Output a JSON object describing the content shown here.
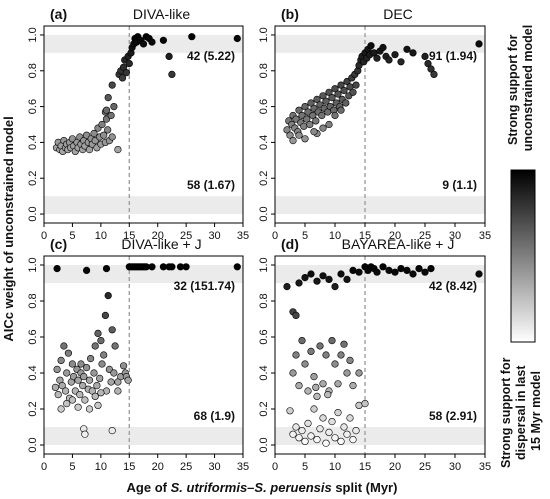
{
  "ylabel": "AICc weight of unconstrained model",
  "xlabel_prefix": "Age of ",
  "xlabel_italic": "S. utriformis–S. peruensis",
  "xlabel_suffix": " split (Myr)",
  "colorbar": {
    "top_label_lines": [
      "Strong support for",
      "unconstrained model"
    ],
    "bottom_label_lines": [
      "Strong support for",
      "dispersal in last",
      "15 Myr model"
    ],
    "color_top": "#000000",
    "color_bottom": "#ffffff"
  },
  "colors": {
    "band": "#ebebeb",
    "vline": "#999999",
    "point_stroke": "#000000"
  },
  "chart_data": [
    {
      "type": "scatter",
      "label": "(a)",
      "title": "DIVA-like",
      "xlim": [
        0,
        35
      ],
      "ylim": [
        -0.05,
        1.05
      ],
      "xticks": [
        0,
        5,
        10,
        15,
        20,
        25,
        30,
        35
      ],
      "yticks": [
        "0.0",
        "0.2",
        "0.4",
        "0.6",
        "0.8",
        "1.0"
      ],
      "vline_x": 15,
      "bands": [
        [
          0.9,
          1.0
        ],
        [
          0.0,
          0.1
        ]
      ],
      "annotation_top": "42 (5.22)",
      "annotation_bottom": "58 (1.67)",
      "points": [
        [
          2.2,
          0.37
        ],
        [
          2.5,
          0.4
        ],
        [
          2.8,
          0.36
        ],
        [
          3.0,
          0.38
        ],
        [
          3.3,
          0.35
        ],
        [
          3.5,
          0.41
        ],
        [
          3.8,
          0.37
        ],
        [
          4.0,
          0.39
        ],
        [
          4.2,
          0.36
        ],
        [
          4.5,
          0.4
        ],
        [
          4.7,
          0.37
        ],
        [
          5.0,
          0.42
        ],
        [
          5.2,
          0.38
        ],
        [
          5.5,
          0.35
        ],
        [
          5.8,
          0.4
        ],
        [
          6.0,
          0.37
        ],
        [
          6.3,
          0.43
        ],
        [
          6.5,
          0.39
        ],
        [
          6.8,
          0.36
        ],
        [
          7.0,
          0.41
        ],
        [
          7.2,
          0.38
        ],
        [
          7.5,
          0.44
        ],
        [
          7.8,
          0.4
        ],
        [
          8.0,
          0.36
        ],
        [
          8.3,
          0.42
        ],
        [
          8.5,
          0.39
        ],
        [
          8.8,
          0.45
        ],
        [
          9.0,
          0.41
        ],
        [
          9.3,
          0.37
        ],
        [
          9.5,
          0.48
        ],
        [
          9.8,
          0.43
        ],
        [
          10.0,
          0.39
        ],
        [
          10.2,
          0.5
        ],
        [
          10.5,
          0.44
        ],
        [
          10.8,
          0.4
        ],
        [
          11.0,
          0.53
        ],
        [
          11.2,
          0.47
        ],
        [
          11.5,
          0.41
        ],
        [
          11.8,
          0.55
        ],
        [
          12.0,
          0.43
        ],
        [
          12.3,
          0.6
        ],
        [
          11.3,
          0.65
        ],
        [
          10.8,
          0.57
        ],
        [
          12.0,
          0.72
        ],
        [
          13.0,
          0.36
        ],
        [
          11.0,
          0.58
        ],
        [
          13.2,
          0.78
        ],
        [
          13.5,
          0.8
        ],
        [
          13.8,
          0.76
        ],
        [
          14.0,
          0.82
        ],
        [
          14.2,
          0.86
        ],
        [
          14.5,
          0.79
        ],
        [
          14.8,
          0.88
        ],
        [
          15.0,
          0.84
        ],
        [
          15.3,
          0.9
        ],
        [
          15.5,
          0.93
        ],
        [
          15.8,
          0.95
        ],
        [
          16.0,
          0.98
        ],
        [
          16.3,
          0.96
        ],
        [
          16.5,
          0.99
        ],
        [
          17.0,
          0.97
        ],
        [
          17.5,
          0.95
        ],
        [
          18.0,
          0.99
        ],
        [
          18.5,
          0.98
        ],
        [
          19.0,
          0.96
        ],
        [
          21.0,
          0.97
        ],
        [
          22.0,
          0.88
        ],
        [
          22.5,
          0.78
        ],
        [
          26.0,
          0.99
        ],
        [
          34.0,
          0.98
        ]
      ]
    },
    {
      "type": "scatter",
      "label": "(b)",
      "title": "DEC",
      "xlim": [
        0,
        35
      ],
      "ylim": [
        -0.05,
        1.05
      ],
      "xticks": [
        0,
        5,
        10,
        15,
        20,
        25,
        30,
        35
      ],
      "yticks": [
        "0.0",
        "0.2",
        "0.4",
        "0.6",
        "0.8",
        "1.0"
      ],
      "vline_x": 15,
      "bands": [
        [
          0.9,
          1.0
        ],
        [
          0.0,
          0.1
        ]
      ],
      "annotation_top": "91 (1.94)",
      "annotation_bottom": "9 (1.1)",
      "points": [
        [
          2.0,
          0.47
        ],
        [
          2.3,
          0.52
        ],
        [
          2.5,
          0.44
        ],
        [
          2.8,
          0.5
        ],
        [
          3.0,
          0.55
        ],
        [
          3.3,
          0.48
        ],
        [
          3.5,
          0.53
        ],
        [
          3.8,
          0.46
        ],
        [
          4.0,
          0.58
        ],
        [
          4.3,
          0.51
        ],
        [
          4.5,
          0.55
        ],
        [
          4.8,
          0.49
        ],
        [
          5.0,
          0.6
        ],
        [
          5.3,
          0.53
        ],
        [
          5.5,
          0.57
        ],
        [
          5.8,
          0.5
        ],
        [
          6.0,
          0.62
        ],
        [
          6.3,
          0.55
        ],
        [
          6.5,
          0.59
        ],
        [
          6.8,
          0.52
        ],
        [
          7.0,
          0.64
        ],
        [
          7.2,
          0.57
        ],
        [
          7.5,
          0.61
        ],
        [
          7.8,
          0.55
        ],
        [
          8.0,
          0.66
        ],
        [
          8.2,
          0.59
        ],
        [
          8.5,
          0.63
        ],
        [
          8.8,
          0.57
        ],
        [
          9.0,
          0.68
        ],
        [
          9.2,
          0.6
        ],
        [
          9.5,
          0.65
        ],
        [
          9.8,
          0.58
        ],
        [
          10.0,
          0.7
        ],
        [
          10.2,
          0.62
        ],
        [
          10.5,
          0.67
        ],
        [
          10.8,
          0.6
        ],
        [
          11.0,
          0.72
        ],
        [
          11.2,
          0.64
        ],
        [
          11.5,
          0.69
        ],
        [
          11.8,
          0.62
        ],
        [
          12.0,
          0.74
        ],
        [
          12.3,
          0.66
        ],
        [
          12.5,
          0.71
        ],
        [
          12.8,
          0.76
        ],
        [
          13.0,
          0.68
        ],
        [
          13.3,
          0.78
        ],
        [
          13.5,
          0.72
        ],
        [
          13.8,
          0.8
        ],
        [
          14.0,
          0.83
        ],
        [
          14.3,
          0.86
        ],
        [
          14.5,
          0.88
        ],
        [
          14.8,
          0.85
        ],
        [
          15.0,
          0.9
        ],
        [
          15.3,
          0.87
        ],
        [
          15.5,
          0.92
        ],
        [
          15.8,
          0.89
        ],
        [
          16.0,
          0.94
        ],
        [
          16.5,
          0.9
        ],
        [
          17.0,
          0.87
        ],
        [
          17.5,
          0.91
        ],
        [
          18.0,
          0.93
        ],
        [
          18.5,
          0.88
        ],
        [
          19.0,
          0.86
        ],
        [
          20.0,
          0.89
        ],
        [
          21.0,
          0.85
        ],
        [
          22.0,
          0.92
        ],
        [
          23.0,
          0.9
        ],
        [
          25.0,
          0.88
        ],
        [
          25.5,
          0.84
        ],
        [
          26.0,
          0.81
        ],
        [
          26.5,
          0.78
        ],
        [
          34.0,
          0.95
        ],
        [
          7.0,
          0.45
        ],
        [
          8.0,
          0.48
        ],
        [
          5.0,
          0.42
        ],
        [
          6.5,
          0.46
        ],
        [
          9.0,
          0.5
        ],
        [
          3.0,
          0.41
        ],
        [
          4.0,
          0.44
        ],
        [
          10.0,
          0.55
        ],
        [
          11.0,
          0.58
        ]
      ]
    },
    {
      "type": "scatter",
      "label": "(c)",
      "title": "DIVA-like + J",
      "xlim": [
        0,
        35
      ],
      "ylim": [
        -0.05,
        1.05
      ],
      "xticks": [
        0,
        5,
        10,
        15,
        20,
        25,
        30,
        35
      ],
      "yticks": [
        "0.0",
        "0.2",
        "0.4",
        "0.6",
        "0.8",
        "1.0"
      ],
      "vline_x": 15,
      "bands": [
        [
          0.9,
          1.0
        ],
        [
          0.0,
          0.1
        ]
      ],
      "annotation_top": "32 (151.74)",
      "annotation_bottom": "68 (1.9)",
      "points": [
        [
          2.3,
          0.98
        ],
        [
          7.5,
          0.97
        ],
        [
          11.0,
          0.98
        ],
        [
          15.0,
          0.99
        ],
        [
          15.3,
          0.99
        ],
        [
          15.6,
          0.99
        ],
        [
          15.9,
          0.99
        ],
        [
          16.2,
          0.99
        ],
        [
          16.5,
          0.99
        ],
        [
          16.8,
          0.99
        ],
        [
          17.1,
          0.99
        ],
        [
          17.4,
          0.99
        ],
        [
          17.7,
          0.99
        ],
        [
          18.0,
          0.99
        ],
        [
          19.0,
          0.99
        ],
        [
          21.0,
          0.99
        ],
        [
          22.0,
          0.99
        ],
        [
          22.5,
          0.99
        ],
        [
          24.0,
          0.99
        ],
        [
          25.0,
          0.99
        ],
        [
          34.0,
          0.99
        ],
        [
          2.0,
          0.32
        ],
        [
          2.3,
          0.42
        ],
        [
          2.5,
          0.28
        ],
        [
          2.8,
          0.36
        ],
        [
          3.0,
          0.47
        ],
        [
          3.2,
          0.33
        ],
        [
          3.5,
          0.55
        ],
        [
          3.8,
          0.3
        ],
        [
          4.0,
          0.4
        ],
        [
          4.3,
          0.51
        ],
        [
          4.5,
          0.26
        ],
        [
          4.8,
          0.35
        ],
        [
          5.0,
          0.45
        ],
        [
          5.2,
          0.38
        ],
        [
          5.5,
          0.3
        ],
        [
          5.8,
          0.42
        ],
        [
          6.0,
          0.36
        ],
        [
          6.3,
          0.28
        ],
        [
          6.5,
          0.4
        ],
        [
          6.8,
          0.33
        ],
        [
          7.0,
          0.38
        ],
        [
          7.2,
          0.25
        ],
        [
          7.5,
          0.43
        ],
        [
          7.8,
          0.31
        ],
        [
          8.0,
          0.36
        ],
        [
          8.2,
          0.48
        ],
        [
          8.5,
          0.3
        ],
        [
          8.8,
          0.4
        ],
        [
          9.0,
          0.55
        ],
        [
          9.3,
          0.33
        ],
        [
          9.5,
          0.62
        ],
        [
          9.8,
          0.37
        ],
        [
          10.0,
          0.58
        ],
        [
          10.2,
          0.45
        ],
        [
          10.5,
          0.5
        ],
        [
          10.8,
          0.72
        ],
        [
          11.0,
          0.3
        ],
        [
          11.3,
          0.83
        ],
        [
          11.5,
          0.42
        ],
        [
          11.8,
          0.35
        ],
        [
          12.0,
          0.64
        ],
        [
          12.3,
          0.4
        ],
        [
          12.5,
          0.55
        ],
        [
          13.0,
          0.35
        ],
        [
          13.5,
          0.38
        ],
        [
          14.0,
          0.44
        ],
        [
          14.3,
          0.4
        ],
        [
          14.5,
          0.38
        ],
        [
          14.8,
          0.36
        ],
        [
          3.0,
          0.2
        ],
        [
          4.0,
          0.23
        ],
        [
          5.0,
          0.25
        ],
        [
          6.0,
          0.21
        ],
        [
          7.0,
          0.09
        ],
        [
          7.2,
          0.06
        ],
        [
          8.0,
          0.2
        ],
        [
          9.0,
          0.27
        ],
        [
          10.0,
          0.29
        ],
        [
          12.0,
          0.08
        ],
        [
          13.0,
          0.3
        ],
        [
          6.5,
          0.45
        ],
        [
          9.5,
          0.22
        ]
      ]
    },
    {
      "type": "scatter",
      "label": "(d)",
      "title": "BAYAREA-like + J",
      "xlim": [
        0,
        35
      ],
      "ylim": [
        -0.05,
        1.05
      ],
      "xticks": [
        0,
        5,
        10,
        15,
        20,
        25,
        30,
        35
      ],
      "yticks": [
        "0.0",
        "0.2",
        "0.4",
        "0.6",
        "0.8",
        "1.0"
      ],
      "vline_x": 15,
      "bands": [
        [
          0.9,
          1.0
        ],
        [
          0.0,
          0.1
        ]
      ],
      "annotation_top": "42 (8.42)",
      "annotation_bottom": "58 (2.91)",
      "points": [
        [
          2.0,
          0.88
        ],
        [
          3.0,
          0.74
        ],
        [
          3.5,
          0.72
        ],
        [
          4.0,
          0.9
        ],
        [
          5.0,
          0.93
        ],
        [
          6.0,
          0.95
        ],
        [
          7.0,
          0.91
        ],
        [
          8.0,
          0.94
        ],
        [
          9.0,
          0.92
        ],
        [
          10.0,
          0.88
        ],
        [
          11.0,
          0.95
        ],
        [
          12.0,
          0.92
        ],
        [
          13.0,
          0.97
        ],
        [
          14.0,
          0.96
        ],
        [
          15.0,
          0.99
        ],
        [
          15.5,
          0.97
        ],
        [
          16.0,
          0.99
        ],
        [
          16.5,
          0.98
        ],
        [
          17.0,
          0.96
        ],
        [
          18.0,
          0.99
        ],
        [
          19.0,
          0.97
        ],
        [
          20.0,
          0.96
        ],
        [
          21.0,
          0.98
        ],
        [
          22.0,
          0.97
        ],
        [
          23.0,
          0.95
        ],
        [
          24.0,
          0.98
        ],
        [
          25.0,
          0.96
        ],
        [
          26.0,
          0.98
        ],
        [
          34.0,
          0.95
        ],
        [
          3.0,
          0.4
        ],
        [
          3.5,
          0.5
        ],
        [
          4.0,
          0.33
        ],
        [
          4.5,
          0.58
        ],
        [
          5.0,
          0.45
        ],
        [
          5.5,
          0.3
        ],
        [
          6.0,
          0.52
        ],
        [
          6.5,
          0.38
        ],
        [
          7.0,
          0.27
        ],
        [
          7.5,
          0.55
        ],
        [
          8.0,
          0.34
        ],
        [
          8.5,
          0.5
        ],
        [
          9.0,
          0.3
        ],
        [
          9.5,
          0.58
        ],
        [
          10.0,
          0.45
        ],
        [
          10.5,
          0.34
        ],
        [
          11.0,
          0.5
        ],
        [
          11.5,
          0.56
        ],
        [
          12.0,
          0.4
        ],
        [
          12.5,
          0.47
        ],
        [
          13.0,
          0.33
        ],
        [
          14.0,
          0.4
        ],
        [
          8.8,
          0.28
        ],
        [
          6.8,
          0.32
        ],
        [
          2.5,
          0.19
        ],
        [
          3.0,
          0.06
        ],
        [
          3.5,
          0.1
        ],
        [
          4.0,
          0.04
        ],
        [
          4.5,
          0.08
        ],
        [
          5.0,
          0.02
        ],
        [
          5.5,
          0.12
        ],
        [
          6.0,
          0.05
        ],
        [
          6.5,
          0.2
        ],
        [
          7.0,
          0.03
        ],
        [
          7.5,
          0.09
        ],
        [
          8.0,
          0.15
        ],
        [
          8.5,
          0.01
        ],
        [
          9.0,
          0.07
        ],
        [
          9.5,
          0.13
        ],
        [
          10.0,
          0.04
        ],
        [
          10.5,
          0.18
        ],
        [
          11.0,
          0.02
        ],
        [
          11.5,
          0.1
        ],
        [
          12.0,
          0.06
        ],
        [
          12.5,
          0.15
        ],
        [
          13.0,
          0.03
        ],
        [
          13.5,
          0.08
        ],
        [
          14.0,
          0.22
        ],
        [
          15.0,
          0.23
        ]
      ]
    }
  ]
}
